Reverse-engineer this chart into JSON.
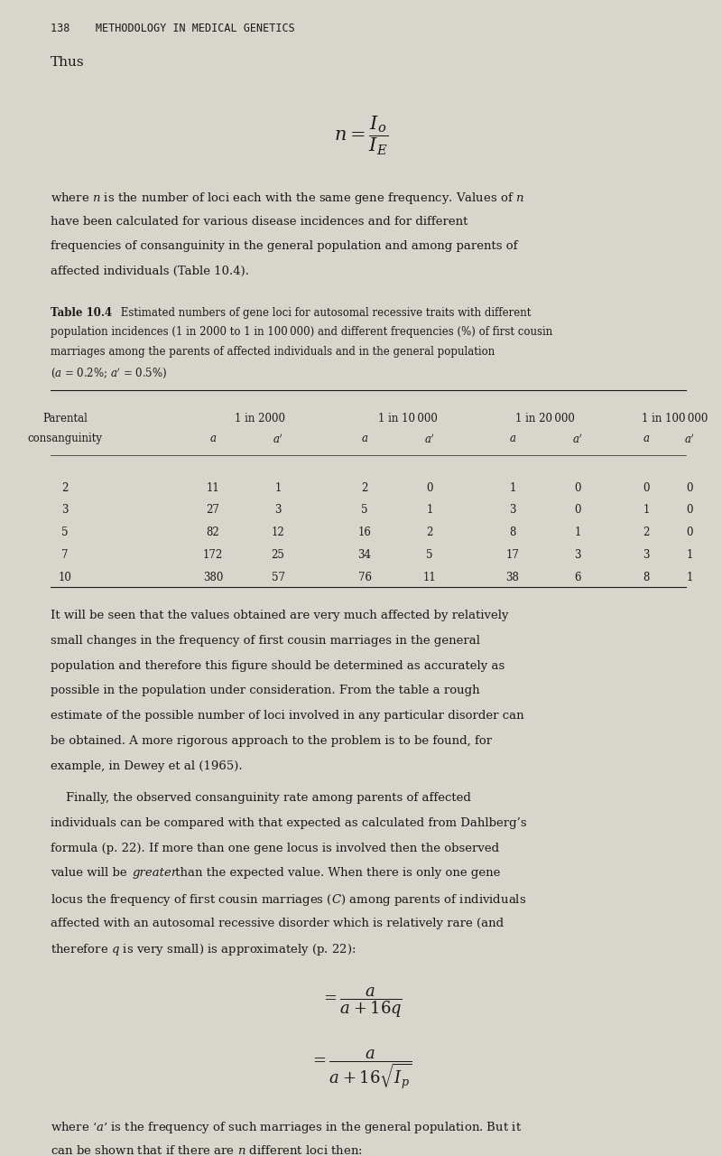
{
  "bg_color": "#d8d5cc",
  "text_color": "#1a1a1a",
  "page_width": 8.0,
  "page_height": 12.8,
  "header_text": "138    METHODOLOGY IN MEDICAL GENETICS",
  "thus_text": "Thus",
  "formula_n": "n = \\frac{I_o}{I_E}",
  "para1": "where $n$ is the number of loci each with the same gene frequency. Values of $n$\nhave been calculated for various disease incidences and for different\nfrequencies of consanguinity in the general population and among parents of\naffected individuals (Table 10.4).",
  "table_caption_bold": "Table 10.4",
  "table_caption_rest": " Estimated numbers of gene loci for autosomal recessive traits with different\npopulation incidences (1 in 2000 to 1 in 100 000) and different frequencies (%) of first cousin\nmarriages among the parents of affected individuals and in the general population\n($a$ = 0.2%; $a'$ = 0.5%)",
  "table_col_headers": [
    "Parental\nconsanguinity",
    "1 in 2000\na    a'",
    "1 in 10 000\na    a'",
    "1 in 20 000\na    a'",
    "1 in 100 000\na    a'"
  ],
  "table_rows": [
    [
      2,
      11,
      1,
      2,
      0,
      1,
      0,
      0,
      0
    ],
    [
      3,
      27,
      3,
      5,
      1,
      3,
      0,
      1,
      0
    ],
    [
      5,
      82,
      12,
      16,
      2,
      8,
      1,
      2,
      0
    ],
    [
      7,
      172,
      25,
      34,
      5,
      17,
      3,
      3,
      1
    ],
    [
      10,
      380,
      57,
      76,
      11,
      38,
      6,
      8,
      1
    ]
  ],
  "para2": "It will be seen that the values obtained are very much affected by relatively\nsmall changes in the frequency of first cousin marriages in the general\npopulation and therefore this figure should be determined as accurately as\npossible in the population under consideration. From the table a rough\nestimate of the possible number of loci involved in any particular disorder can\nbe obtained. A more rigorous approach to the problem is to be found, for\nexample, in Dewey et al (1965).",
  "para3_indent": "    Finally, the observed consanguinity rate among parents of affected\nindividuals can be compared with that expected as calculated from Dahlberg’s\nformula (p. 22). If more than one gene locus is involved then the observed\nvalue will be $greater$ than the expected value. When there is only one gene\nlocus the frequency of first cousin marriages ($C$) among parents of individuals\naffected with an autosomal recessive disorder which is relatively rare (and\ntherefore $q$ is very small) is approximately (p. 22):",
  "formula_eq1": "= \\frac{a}{a + 16q}",
  "formula_eq2": "= \\frac{a}{a + 16\\sqrt{I_p}}",
  "para4": "where ‘$a$’ is the frequency of such marriages in the general population. But it\ncan be shown that if there are $n$ different loci then:"
}
